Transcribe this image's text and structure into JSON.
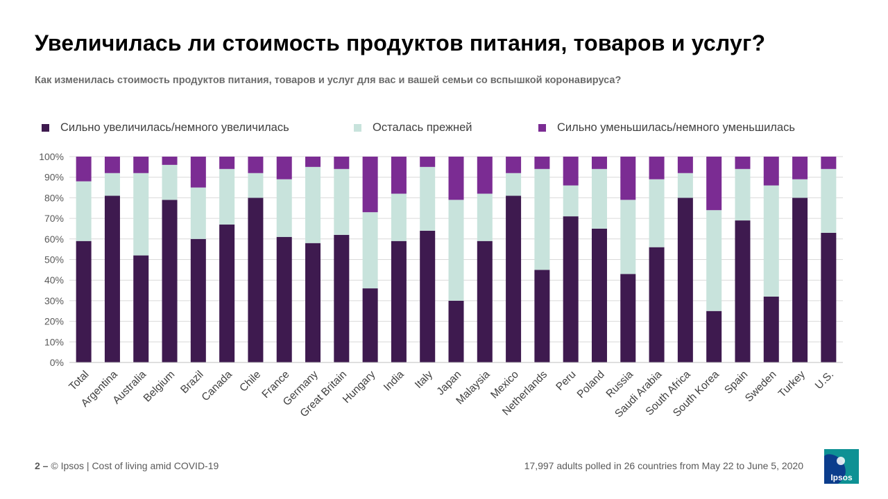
{
  "header": {
    "title": "Увеличилась ли стоимость продуктов питания, товаров и услуг?",
    "subtitle": "Как изменилась стоимость продуктов питания, товаров и услуг для вас и вашей семьи со вспышкой коронавируса?"
  },
  "footer": {
    "page_number": "2 –",
    "source": "© Ipsos | Cost of living amid COVID-19",
    "note": "17,997 adults polled in 26 countries from May 22 to June 5, 2020",
    "logo_text": "Ipsos"
  },
  "colors": {
    "increased": "#3e1a4f",
    "same": "#c8e3dc",
    "decreased": "#7b2c93",
    "grid": "#d9d9d9"
  },
  "chart_data": {
    "type": "bar",
    "stacked": true,
    "title": "Увеличилась ли стоимость продуктов питания, товаров и услуг?",
    "xlabel": "",
    "ylabel": "",
    "ylim": [
      0,
      100
    ],
    "yticks": [
      "0%",
      "10%",
      "20%",
      "30%",
      "40%",
      "50%",
      "60%",
      "70%",
      "80%",
      "90%",
      "100%"
    ],
    "legend_position": "top",
    "categories": [
      "Total",
      "Argentina",
      "Australia",
      "Belgium",
      "Brazil",
      "Canada",
      "Chile",
      "France",
      "Germany",
      "Great Britain",
      "Hungary",
      "India",
      "Italy",
      "Japan",
      "Malaysia",
      "Mexico",
      "Netherlands",
      "Peru",
      "Poland",
      "Russia",
      "Saudi Arabia",
      "South Africa",
      "South Korea",
      "Spain",
      "Sweden",
      "Turkey",
      "U.S."
    ],
    "series": [
      {
        "name": "Сильно увеличилась/немного увеличилась",
        "color": "#3e1a4f",
        "values": [
          59,
          81,
          52,
          79,
          60,
          67,
          80,
          61,
          58,
          62,
          36,
          59,
          64,
          30,
          59,
          81,
          45,
          71,
          65,
          43,
          56,
          80,
          25,
          69,
          32,
          80,
          63
        ]
      },
      {
        "name": "Осталась прежней",
        "color": "#c8e3dc",
        "values": [
          29,
          11,
          40,
          17,
          25,
          27,
          12,
          28,
          37,
          32,
          37,
          23,
          31,
          49,
          23,
          11,
          49,
          15,
          29,
          36,
          33,
          12,
          49,
          25,
          54,
          9,
          31
        ]
      },
      {
        "name": "Сильно уменьшилась/немного уменьшилась",
        "color": "#7b2c93",
        "values": [
          12,
          8,
          8,
          4,
          15,
          6,
          8,
          11,
          5,
          6,
          27,
          18,
          5,
          21,
          18,
          8,
          6,
          14,
          6,
          21,
          11,
          8,
          26,
          6,
          14,
          11,
          6
        ]
      }
    ]
  }
}
